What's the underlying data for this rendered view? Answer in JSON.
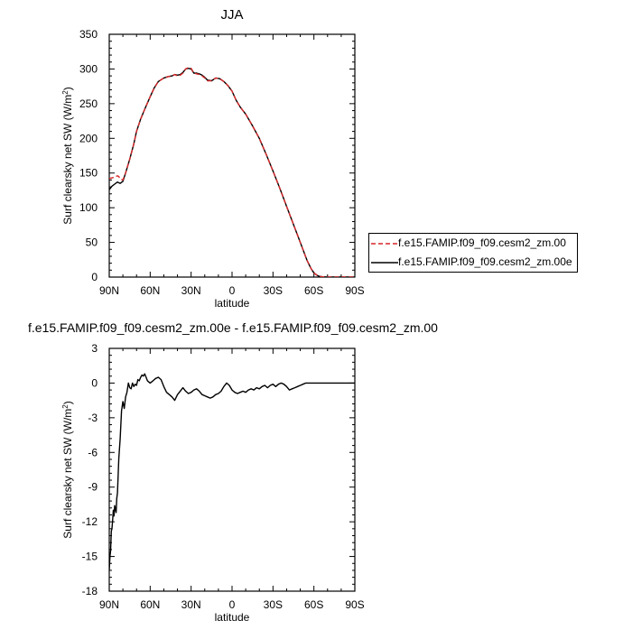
{
  "chart_data": [
    {
      "type": "line",
      "title": "JJA",
      "xlabel": "latitude",
      "ylabel": "Surf clearsky net SW (W/m",
      "ylabel_sup": "2",
      "ylabel_close": ")",
      "xlim": [
        -90,
        90
      ],
      "ylim": [
        0,
        350
      ],
      "xticks": [
        -90,
        -60,
        -30,
        0,
        30,
        60,
        90
      ],
      "xtick_labels": [
        "90N",
        "60N",
        "30N",
        "0",
        "30S",
        "60S",
        "90S"
      ],
      "yticks": [
        0,
        50,
        100,
        150,
        200,
        250,
        300,
        350
      ],
      "ytick_labels": [
        "0",
        "50",
        "100",
        "150",
        "200",
        "250",
        "300",
        "350"
      ],
      "grid": false,
      "legend_position": "right",
      "series": [
        {
          "name": "f.e15.FAMIP.f09_f09.cesm2_zm.00",
          "color": "#d62728",
          "dash": "dashed",
          "x": [
            -90,
            -88,
            -86,
            -84,
            -83,
            -82,
            -80,
            -78,
            -75,
            -72,
            -70,
            -67,
            -64,
            -60,
            -57,
            -54,
            -50,
            -47,
            -44,
            -42,
            -40,
            -38,
            -36,
            -34,
            -32,
            -30,
            -28,
            -26,
            -24,
            -22,
            -20,
            -18,
            -15,
            -12,
            -9,
            -6,
            -3,
            0,
            3,
            6,
            10,
            15,
            20,
            25,
            30,
            35,
            40,
            45,
            50,
            55,
            58,
            60,
            62,
            64,
            66,
            68,
            70,
            75,
            80,
            85,
            90
          ],
          "y": [
            142,
            143,
            144,
            146,
            145,
            141,
            140,
            150,
            170,
            192,
            210,
            228,
            242,
            260,
            273,
            282,
            287,
            289,
            290,
            292,
            290,
            291,
            294,
            300,
            302,
            301,
            294,
            293,
            292,
            290,
            287,
            283,
            283,
            287,
            286,
            282,
            276,
            268,
            255,
            245,
            235,
            218,
            200,
            177,
            153,
            128,
            102,
            76,
            50,
            24,
            12,
            6,
            3,
            1,
            0.5,
            0.2,
            0,
            0,
            0,
            0,
            0
          ]
        },
        {
          "name": "f.e15.FAMIP.f09_f09.cesm2_zm.00e",
          "color": "#000000",
          "dash": "solid",
          "x": [
            -90,
            -88,
            -86,
            -84,
            -83,
            -82,
            -80,
            -78,
            -75,
            -72,
            -70,
            -67,
            -64,
            -60,
            -57,
            -54,
            -50,
            -47,
            -44,
            -42,
            -40,
            -38,
            -36,
            -34,
            -32,
            -30,
            -28,
            -26,
            -24,
            -22,
            -20,
            -18,
            -15,
            -12,
            -9,
            -6,
            -3,
            0,
            3,
            6,
            10,
            15,
            20,
            25,
            30,
            35,
            40,
            45,
            50,
            55,
            58,
            60,
            62,
            64,
            66,
            68,
            70,
            75,
            80,
            85,
            90
          ],
          "y": [
            126,
            131,
            134,
            137,
            136,
            135,
            138,
            150,
            170,
            192,
            210,
            228,
            242,
            260,
            273,
            282,
            287,
            289,
            290,
            292,
            291,
            292,
            295,
            300,
            301,
            300,
            294,
            294,
            293,
            291,
            288,
            284,
            283,
            287,
            286,
            282,
            276,
            268,
            255,
            245,
            235,
            218,
            200,
            177,
            153,
            128,
            102,
            76,
            50,
            24,
            12,
            6,
            3,
            1,
            0.5,
            0.2,
            0,
            0,
            0,
            0,
            0
          ]
        }
      ]
    },
    {
      "type": "line",
      "title": "f.e15.FAMIP.f09_f09.cesm2_zm.00e - f.e15.FAMIP.f09_f09.cesm2_zm.00",
      "xlabel": "latitude",
      "ylabel": "Surf clearsky net SW (W/m",
      "ylabel_sup": "2",
      "ylabel_close": ")",
      "xlim": [
        -90,
        90
      ],
      "ylim": [
        -18,
        3
      ],
      "xticks": [
        -90,
        -60,
        -30,
        0,
        30,
        60,
        90
      ],
      "xtick_labels": [
        "90N",
        "60N",
        "30N",
        "0",
        "30S",
        "60S",
        "90S"
      ],
      "yticks": [
        3,
        0,
        -3,
        -6,
        -9,
        -12,
        -15,
        -18
      ],
      "ytick_labels": [
        "3",
        "0",
        "-3",
        "-6",
        "-9",
        "-12",
        "-15",
        "-18"
      ],
      "grid": false,
      "series": [
        {
          "color": "#000000",
          "dash": "solid",
          "x": [
            -90,
            -89.5,
            -89,
            -88.5,
            -88,
            -87.5,
            -87,
            -86.5,
            -86,
            -85,
            -84.5,
            -84,
            -83,
            -82,
            -81,
            -80,
            -79,
            -78,
            -77,
            -76,
            -75,
            -74,
            -73,
            -72,
            -71,
            -70,
            -69,
            -68,
            -67,
            -66,
            -65,
            -64,
            -63,
            -62,
            -60,
            -58,
            -56,
            -54,
            -52,
            -50,
            -48,
            -46,
            -44,
            -42,
            -40,
            -38,
            -36,
            -34,
            -32,
            -30,
            -28,
            -26,
            -24,
            -22,
            -20,
            -18,
            -16,
            -14,
            -12,
            -10,
            -8,
            -6,
            -4,
            -2,
            0,
            2,
            4,
            6,
            8,
            10,
            12,
            14,
            16,
            18,
            20,
            22,
            24,
            26,
            28,
            30,
            32,
            34,
            36,
            38,
            40,
            42,
            44,
            46,
            48,
            50,
            52,
            54,
            56,
            58,
            60,
            62,
            64,
            66,
            68,
            70,
            75,
            80,
            85,
            90
          ],
          "y": [
            -16.2,
            -15.0,
            -14.5,
            -12.8,
            -12.6,
            -11.8,
            -11.0,
            -11.5,
            -10.6,
            -11.2,
            -10.0,
            -9.5,
            -6.5,
            -4.8,
            -2.4,
            -1.6,
            -2.2,
            -1.2,
            -0.8,
            0.0,
            -0.4,
            -0.5,
            0.0,
            -0.3,
            -0.1,
            -0.2,
            0.3,
            0.2,
            0.5,
            0.7,
            0.6,
            0.8,
            0.5,
            0.2,
            0.0,
            0.2,
            0.4,
            0.5,
            0.3,
            -0.3,
            -0.8,
            -1.0,
            -1.2,
            -1.5,
            -1.0,
            -0.7,
            -0.4,
            -0.7,
            -0.9,
            -0.8,
            -0.6,
            -0.5,
            -0.7,
            -1.0,
            -1.1,
            -1.2,
            -1.3,
            -1.2,
            -1.0,
            -0.9,
            -0.7,
            -0.3,
            0.0,
            -0.2,
            -0.6,
            -0.8,
            -0.9,
            -0.8,
            -0.7,
            -0.8,
            -0.6,
            -0.5,
            -0.6,
            -0.4,
            -0.5,
            -0.3,
            -0.2,
            -0.4,
            -0.2,
            -0.1,
            -0.3,
            -0.1,
            0.0,
            -0.1,
            -0.3,
            -0.6,
            -0.5,
            -0.4,
            -0.3,
            -0.2,
            -0.1,
            0.0,
            0.0,
            0.0,
            0.0,
            0.0,
            0.0,
            0.0,
            0.0,
            0.0,
            0.0,
            0.0,
            0.0,
            0.0
          ]
        }
      ]
    }
  ]
}
